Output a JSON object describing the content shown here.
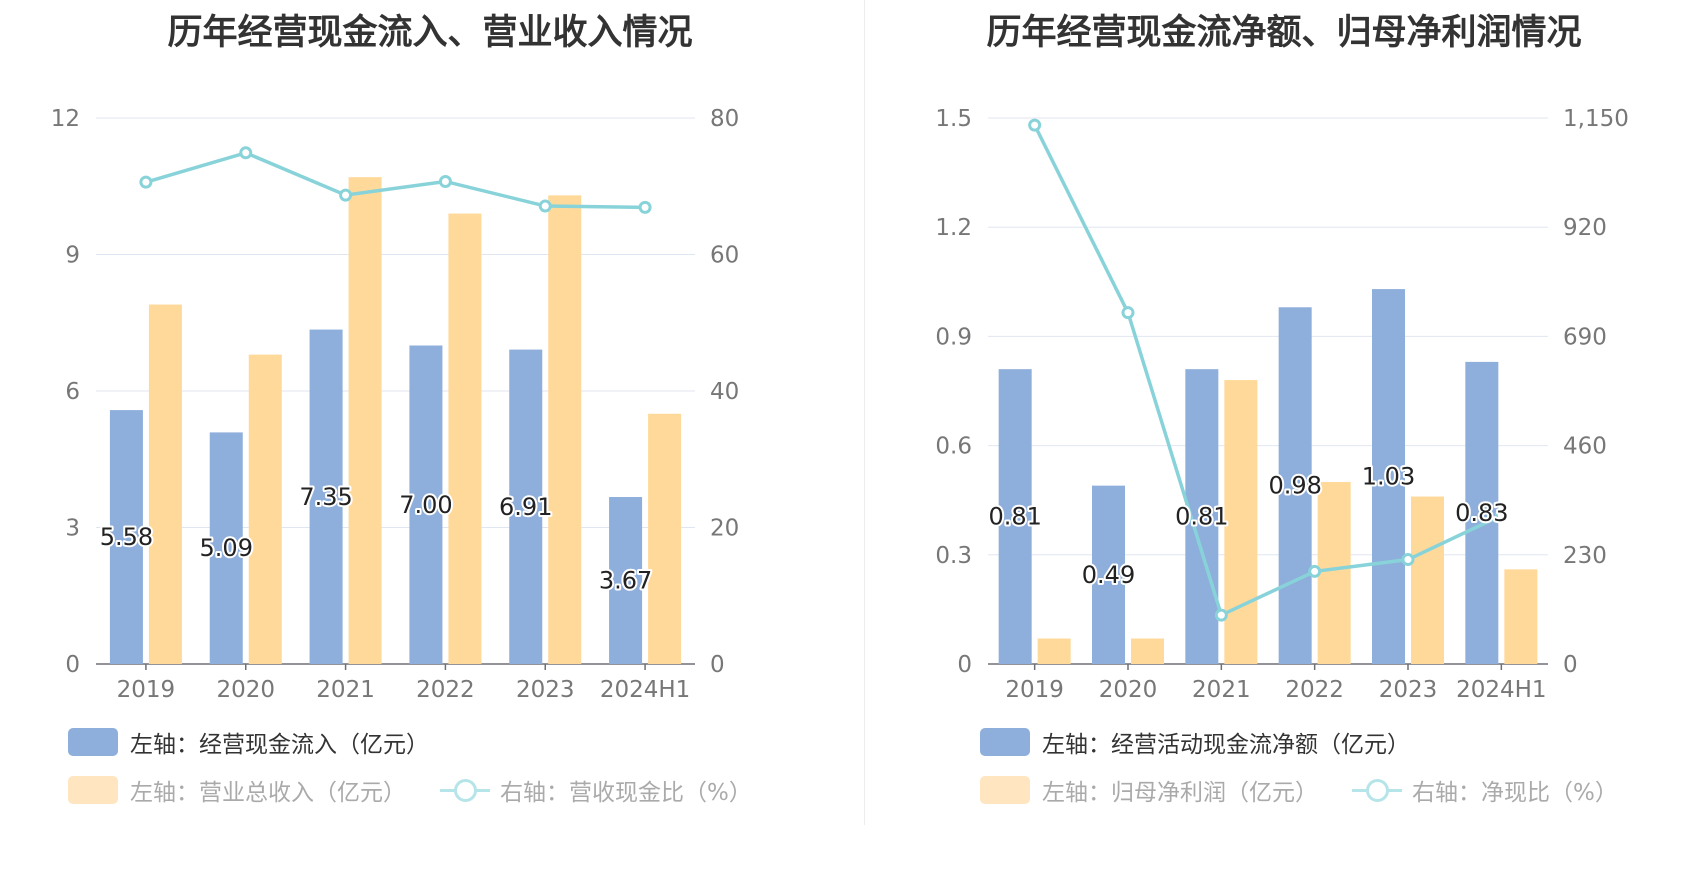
{
  "chart_data": [
    {
      "type": "bar",
      "title": "历年经营现金流入、营业收入情况",
      "categories": [
        "2019",
        "2020",
        "2021",
        "2022",
        "2023",
        "2024H1"
      ],
      "y_left": {
        "min": 0,
        "max": 12,
        "ticks": [
          "0",
          "3",
          "6",
          "9",
          "12"
        ]
      },
      "y_right": {
        "min": 0,
        "max": 80,
        "ticks": [
          "0",
          "20",
          "40",
          "60",
          "80"
        ]
      },
      "grid": true,
      "legend_position": "bottom-left",
      "series": [
        {
          "name": "左轴：经营现金流入（亿元）",
          "type": "bar",
          "axis": "left",
          "color": "#8eaedb",
          "values": [
            5.58,
            5.09,
            7.35,
            7.0,
            6.91,
            3.67
          ],
          "labels": [
            "5.58",
            "5.09",
            "7.35",
            "7.00",
            "6.91",
            "3.67"
          ]
        },
        {
          "name": "左轴：营业总收入（亿元）",
          "type": "bar",
          "axis": "left",
          "color": "#ffd99a",
          "values": [
            7.9,
            6.8,
            10.7,
            9.9,
            10.3,
            5.5
          ]
        },
        {
          "name": "右轴：营收现金比（%）",
          "type": "line",
          "axis": "right",
          "color": "#88d3d9",
          "values": [
            70.6,
            74.9,
            68.7,
            70.7,
            67.1,
            66.9
          ]
        }
      ]
    },
    {
      "type": "bar",
      "title": "历年经营现金流净额、归母净利润情况",
      "categories": [
        "2019",
        "2020",
        "2021",
        "2022",
        "2023",
        "2024H1"
      ],
      "y_left": {
        "min": 0,
        "max": 1.5,
        "ticks": [
          "0",
          "0.3",
          "0.6",
          "0.9",
          "1.2",
          "1.5"
        ]
      },
      "y_right": {
        "min": 0,
        "max": 1150,
        "ticks": [
          "0",
          "230",
          "460",
          "690",
          "920",
          "1,150"
        ]
      },
      "grid": true,
      "legend_position": "bottom-left",
      "series": [
        {
          "name": "左轴：经营活动现金流净额（亿元）",
          "type": "bar",
          "axis": "left",
          "color": "#8eaedb",
          "values": [
            0.81,
            0.49,
            0.81,
            0.98,
            1.03,
            0.83
          ],
          "labels": [
            "0.81",
            "0.49",
            "0.81",
            "0.98",
            "1.03",
            "0.83"
          ]
        },
        {
          "name": "左轴：归母净利润（亿元）",
          "type": "bar",
          "axis": "left",
          "color": "#ffd99a",
          "values": [
            0.07,
            0.07,
            0.78,
            0.5,
            0.46,
            0.26
          ]
        },
        {
          "name": "右轴：净现比（%）",
          "type": "line",
          "axis": "right",
          "color": "#88d3d9",
          "values": [
            1135,
            740,
            103,
            195,
            220,
            313
          ]
        }
      ]
    }
  ]
}
